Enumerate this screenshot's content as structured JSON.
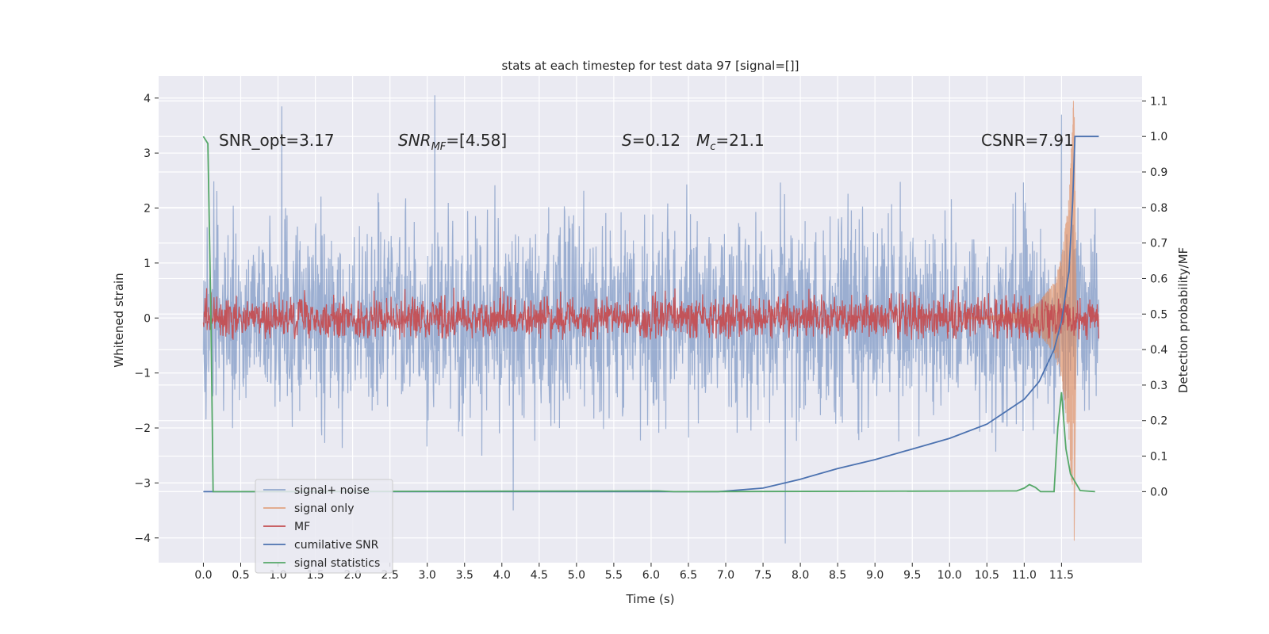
{
  "chart_data": {
    "type": "line",
    "title": "stats at each timestep for test data 97 [signal=[]]",
    "xlabel": "Time (s)",
    "ylabel_left": "Whitened strain",
    "ylabel_right": "Detection probability/MF",
    "xlim": [
      -0.6,
      12.58
    ],
    "ylim_left": [
      -4.45,
      4.4
    ],
    "ylim_right": [
      -0.2,
      1.17
    ],
    "x_ticks": [
      "0.0",
      "0.5",
      "1.0",
      "1.5",
      "2.0",
      "2.5",
      "3.0",
      "3.5",
      "4.0",
      "4.5",
      "5.0",
      "5.5",
      "6.0",
      "6.5",
      "7.0",
      "7.5",
      "8.0",
      "8.5",
      "9.0",
      "9.5",
      "10.0",
      "10.5",
      "11.0",
      "11.5"
    ],
    "y_ticks_left": [
      "−4",
      "−3",
      "−2",
      "−1",
      "0",
      "1",
      "2",
      "3",
      "4"
    ],
    "y_ticks_right": [
      "0.0",
      "0.1",
      "0.2",
      "0.3",
      "0.4",
      "0.5",
      "0.6",
      "0.7",
      "0.8",
      "0.9",
      "1.0",
      "1.1"
    ],
    "grid": true,
    "legend_placement": "lower-left",
    "annotations": {
      "snr_opt": "SNR_opt=3.17",
      "snr_mf_main": "SNR",
      "snr_mf_sub": "MF",
      "snr_mf_value": "=[4.58]",
      "s_main": "S",
      "s_value": "=0.12",
      "mc_main": "M",
      "mc_sub": "c",
      "mc_value": "=21.1",
      "csnr": "CSNR=7.91"
    },
    "series": [
      {
        "name": "signal+ noise",
        "axis": "left",
        "color": "#4c72b0",
        "style": "noise band",
        "x_range": [
          0.0,
          12.0
        ],
        "core_envelope": [
          -1.3,
          1.3
        ],
        "peak_envelope": [
          -3.5,
          4.0
        ],
        "notable_peaks": [
          [
            1.05,
            3.85
          ],
          [
            3.1,
            4.05
          ],
          [
            7.8,
            -4.1
          ],
          [
            4.15,
            -3.5
          ],
          [
            11.5,
            3.7
          ]
        ]
      },
      {
        "name": "signal only",
        "axis": "left",
        "color": "#dd8452",
        "style": "chirp",
        "points": [
          [
            0.0,
            0.0
          ],
          [
            10.5,
            0.02
          ],
          [
            11.0,
            0.12
          ],
          [
            11.2,
            0.3
          ],
          [
            11.4,
            0.65
          ],
          [
            11.5,
            1.1
          ],
          [
            11.6,
            2.2
          ],
          [
            11.66,
            3.95
          ],
          [
            11.67,
            -4.05
          ],
          [
            11.7,
            0.0
          ]
        ]
      },
      {
        "name": "MF",
        "axis": "left",
        "color": "#c44e52",
        "style": "noise band",
        "x_range": [
          0.0,
          12.0
        ],
        "core_envelope": [
          -0.28,
          0.28
        ],
        "peak_envelope": [
          -0.4,
          0.9
        ]
      },
      {
        "name": "cumilative SNR",
        "axis": "right",
        "color": "#4c72b0",
        "points": [
          [
            0.0,
            0.0
          ],
          [
            6.9,
            0.0
          ],
          [
            7.5,
            0.01
          ],
          [
            8.0,
            0.035
          ],
          [
            8.5,
            0.065
          ],
          [
            9.0,
            0.09
          ],
          [
            9.5,
            0.12
          ],
          [
            10.0,
            0.15
          ],
          [
            10.5,
            0.19
          ],
          [
            11.0,
            0.26
          ],
          [
            11.2,
            0.31
          ],
          [
            11.4,
            0.4
          ],
          [
            11.5,
            0.48
          ],
          [
            11.6,
            0.62
          ],
          [
            11.65,
            0.82
          ],
          [
            11.68,
            1.0
          ],
          [
            12.0,
            1.0
          ]
        ]
      },
      {
        "name": "signal statistics",
        "axis": "right",
        "color": "#55a868",
        "points": [
          [
            0.0,
            1.0
          ],
          [
            0.06,
            0.98
          ],
          [
            0.1,
            0.5
          ],
          [
            0.13,
            0.0
          ],
          [
            6.1,
            0.002
          ],
          [
            6.3,
            0.0
          ],
          [
            10.9,
            0.002
          ],
          [
            11.0,
            0.01
          ],
          [
            11.07,
            0.02
          ],
          [
            11.15,
            0.012
          ],
          [
            11.22,
            0.0
          ],
          [
            11.4,
            0.0
          ],
          [
            11.45,
            0.18
          ],
          [
            11.5,
            0.28
          ],
          [
            11.56,
            0.12
          ],
          [
            11.62,
            0.05
          ],
          [
            11.75,
            0.003
          ],
          [
            11.95,
            0.0
          ]
        ]
      }
    ]
  }
}
